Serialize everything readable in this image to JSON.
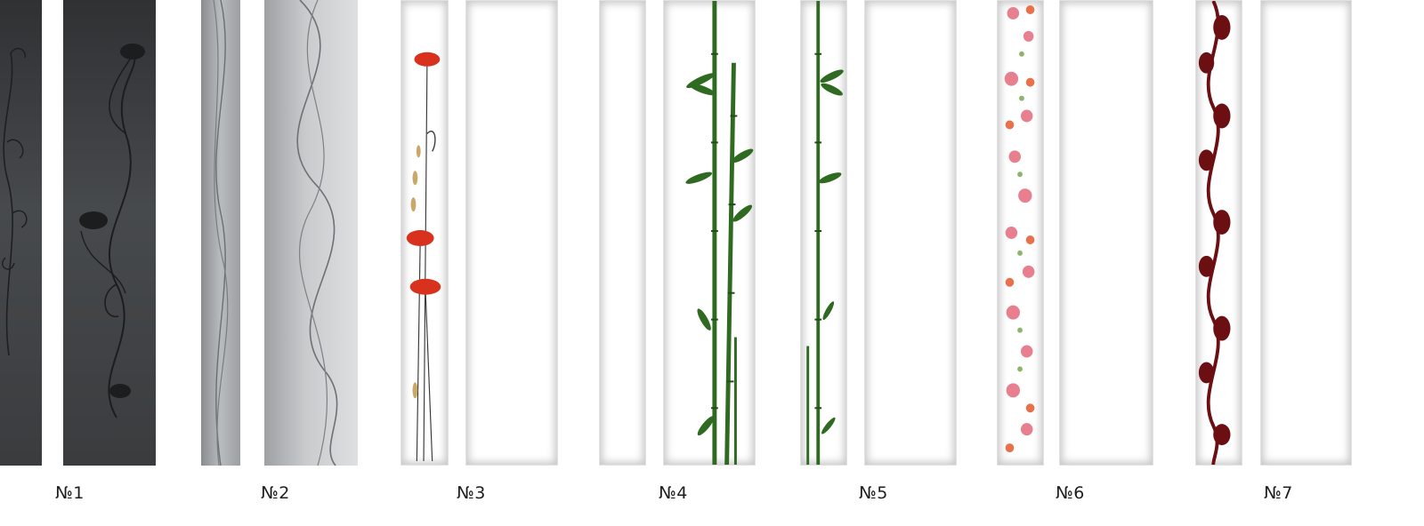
{
  "options": [
    {
      "id": 1,
      "label": "№1",
      "design": "dark-floral-etched"
    },
    {
      "id": 2,
      "label": "№2",
      "design": "grey-wavy-lines"
    },
    {
      "id": 3,
      "label": "№3",
      "design": "red-poppies"
    },
    {
      "id": 4,
      "label": "№4",
      "design": "green-bamboo"
    },
    {
      "id": 5,
      "label": "№5",
      "design": "green-bamboo-narrow"
    },
    {
      "id": 6,
      "label": "№6",
      "design": "pink-floral-strip"
    },
    {
      "id": 7,
      "label": "№7",
      "design": "burgundy-ornament"
    }
  ],
  "colors": {
    "dark_panel": "#3c3e40",
    "grey_panel": "#b5b8ba",
    "poppy_red": "#d8321e",
    "bamboo_green": "#2e6a20",
    "ornament_burgundy": "#6b0f12",
    "floral_pink": "#e87f8e"
  }
}
